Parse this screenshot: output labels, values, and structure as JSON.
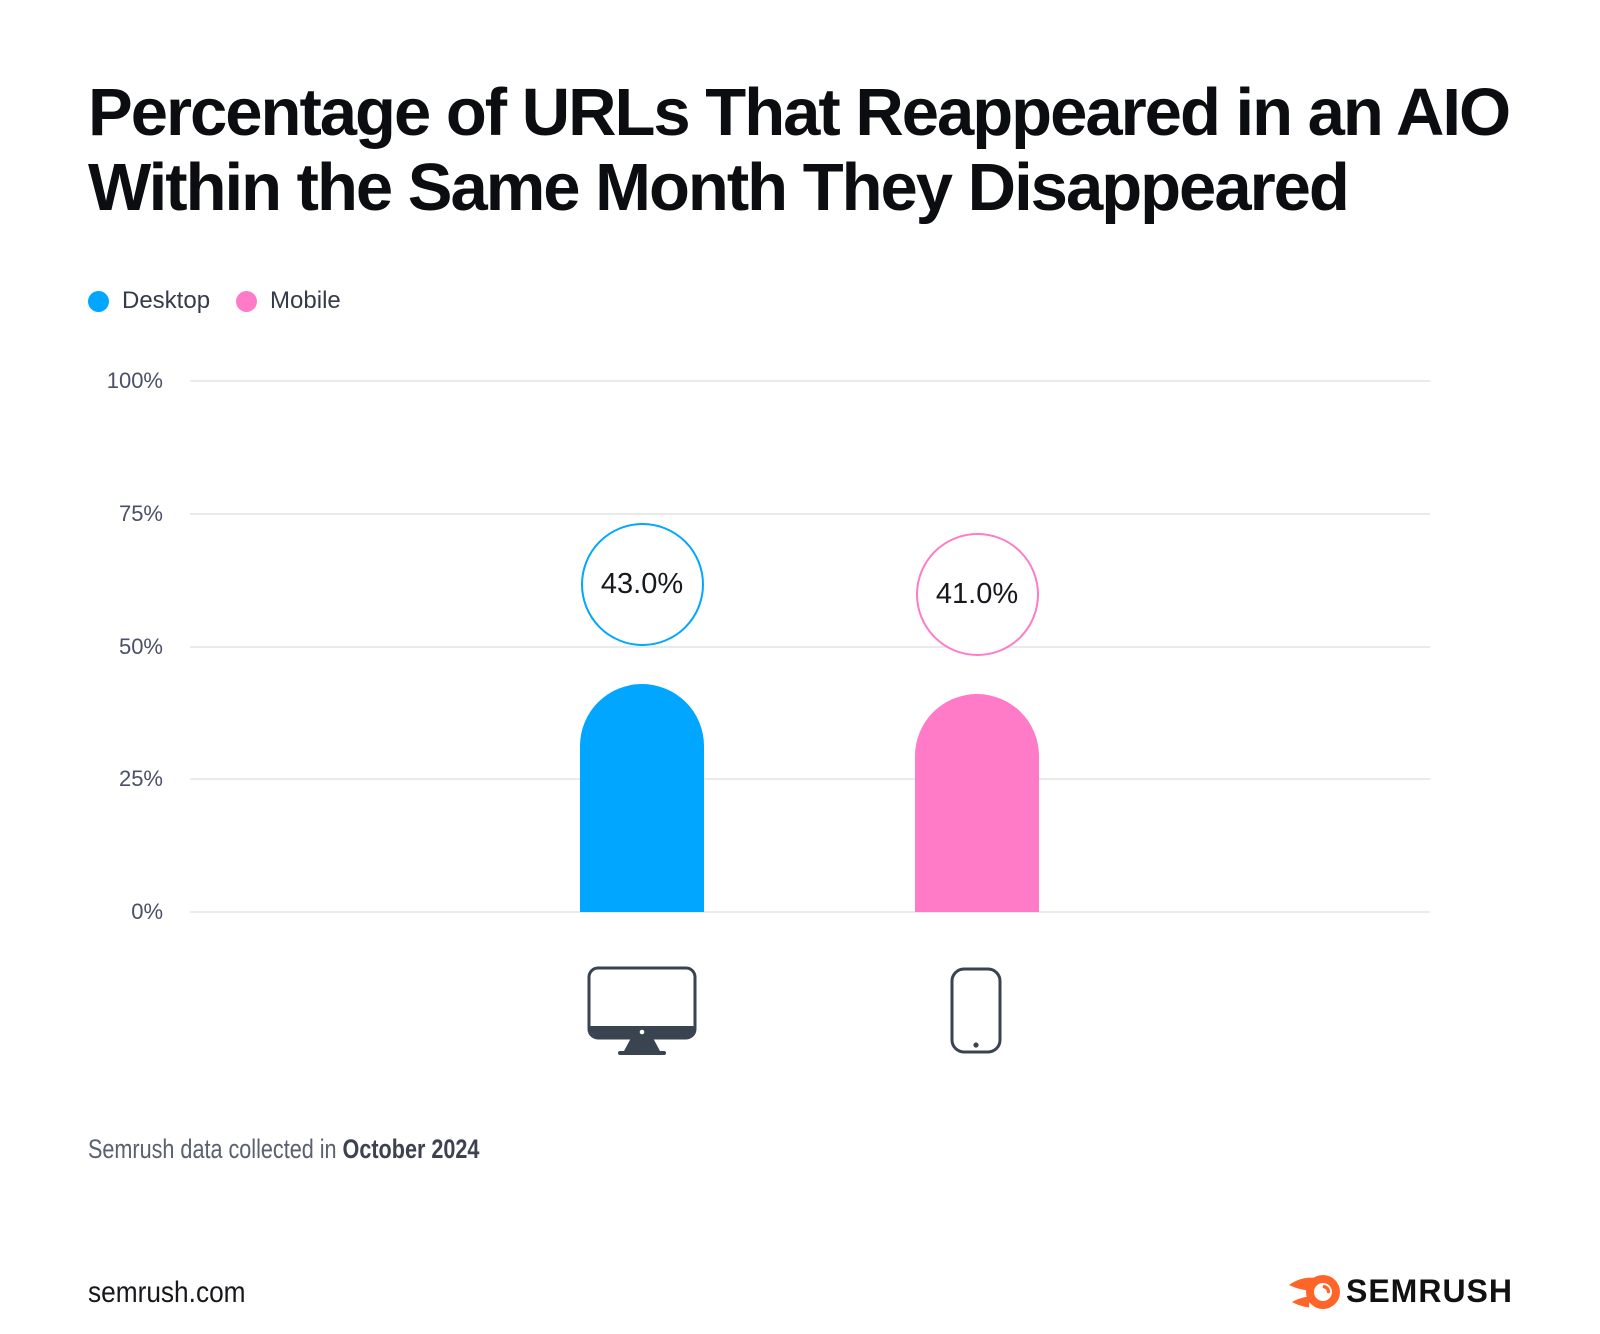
{
  "title": {
    "line1": "Percentage of URLs That Reappeared in an AIO",
    "line2": "Within the Same Month They Disappeared"
  },
  "legend": {
    "items": [
      {
        "label": "Desktop",
        "color": "#00a6ff"
      },
      {
        "label": "Mobile",
        "color": "#ff7bc8"
      }
    ]
  },
  "chart_data": {
    "type": "bar",
    "categories": [
      "Desktop",
      "Mobile"
    ],
    "values": [
      43.0,
      41.0
    ],
    "value_labels": [
      "43.0%",
      "41.0%"
    ],
    "series_colors": [
      "#00a6ff",
      "#ff7bc8"
    ],
    "title": "Percentage of URLs That Reappeared in an AIO Within the Same Month They Disappeared",
    "xlabel": "",
    "ylabel": "",
    "ylim": [
      0,
      100
    ],
    "yticks": [
      "0%",
      "25%",
      "50%",
      "75%",
      "100%"
    ],
    "grid": true,
    "legend_position": "top-left"
  },
  "footnote": {
    "prefix": "Semrush data collected in",
    "date": "October 2024"
  },
  "footer": {
    "site": "semrush.com",
    "brand": "SEMRUSH"
  },
  "icons": {
    "desktop": "desktop-monitor-icon",
    "mobile": "mobile-phone-icon",
    "logo": "semrush-flame-icon"
  }
}
